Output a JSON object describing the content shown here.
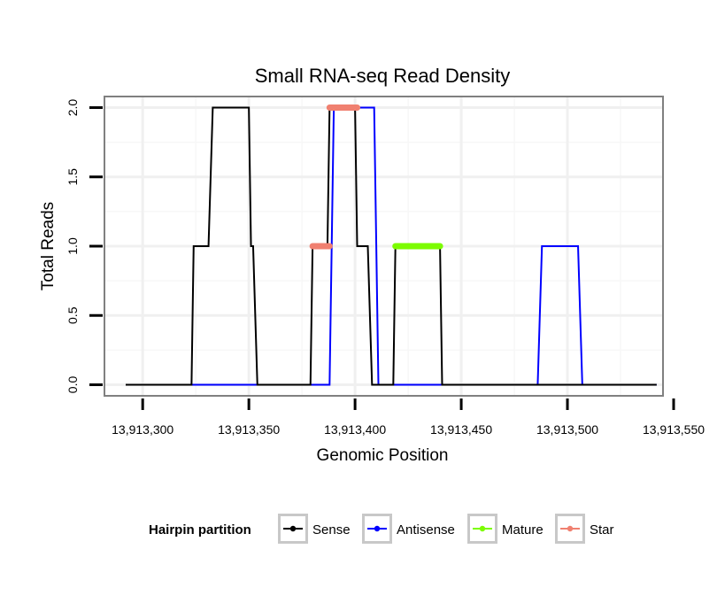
{
  "chart_data": {
    "type": "line",
    "title": "Small RNA-seq Read Density",
    "xlabel": "Genomic Position",
    "ylabel": "Total Reads",
    "xlim": [
      13913282,
      13913545
    ],
    "ylim": [
      -0.08,
      2.08
    ],
    "x_ticks": [
      13913300,
      13913350,
      13913400,
      13913450,
      13913500,
      13913550
    ],
    "x_tick_labels": [
      "13,913,300",
      "13,913,350",
      "13,913,400",
      "13,913,450",
      "13,913,500",
      "13,913,550"
    ],
    "y_ticks": [
      0,
      0.5,
      1,
      1.5,
      2
    ],
    "y_tick_labels": [
      "0.0",
      "0.5",
      "1.0",
      "1.5",
      "2.0"
    ],
    "grid": true,
    "legend": {
      "title": "Hairpin partition",
      "position": "bottom",
      "entries": [
        {
          "label": "Sense",
          "color": "#000000"
        },
        {
          "label": "Antisense",
          "color": "#0000ff"
        },
        {
          "label": "Mature",
          "color": "#7cfc00"
        },
        {
          "label": "Star",
          "color": "#f08070"
        }
      ]
    },
    "series": [
      {
        "name": "Antisense",
        "color": "#0000ff",
        "width": 2,
        "points": [
          [
            13913292,
            0
          ],
          [
            13913388,
            0
          ],
          [
            13913390,
            2
          ],
          [
            13913409,
            2
          ],
          [
            13913411,
            0
          ],
          [
            13913486,
            0
          ],
          [
            13913488,
            1
          ],
          [
            13913505,
            1
          ],
          [
            13913507,
            0
          ],
          [
            13913542,
            0
          ]
        ]
      },
      {
        "name": "Sense",
        "color": "#000000",
        "width": 2,
        "points": [
          [
            13913292,
            0
          ],
          [
            13913323,
            0
          ],
          [
            13913324,
            1
          ],
          [
            13913331,
            1
          ],
          [
            13913333,
            2
          ],
          [
            13913350,
            2
          ],
          [
            13913351,
            1
          ],
          [
            13913352,
            1
          ],
          [
            13913354,
            0
          ],
          [
            13913379,
            0
          ],
          [
            13913380,
            1
          ],
          [
            13913387,
            1
          ],
          [
            13913388,
            2
          ],
          [
            13913400,
            2
          ],
          [
            13913401,
            1
          ],
          [
            13913406,
            1
          ],
          [
            13913408,
            0
          ],
          [
            13913418,
            0
          ],
          [
            13913419,
            1
          ],
          [
            13913440,
            1
          ],
          [
            13913441,
            0
          ],
          [
            13913542,
            0
          ]
        ]
      },
      {
        "name": "Mature",
        "color": "#7cfc00",
        "width": 7,
        "points": [
          [
            13913419,
            1
          ],
          [
            13913440,
            1
          ]
        ]
      },
      {
        "name": "Star",
        "color": "#f08070",
        "width": 7,
        "points": [
          [
            13913380,
            1
          ],
          [
            13913388,
            1
          ],
          null,
          [
            13913388,
            2
          ],
          [
            13913401,
            2
          ]
        ]
      }
    ]
  }
}
